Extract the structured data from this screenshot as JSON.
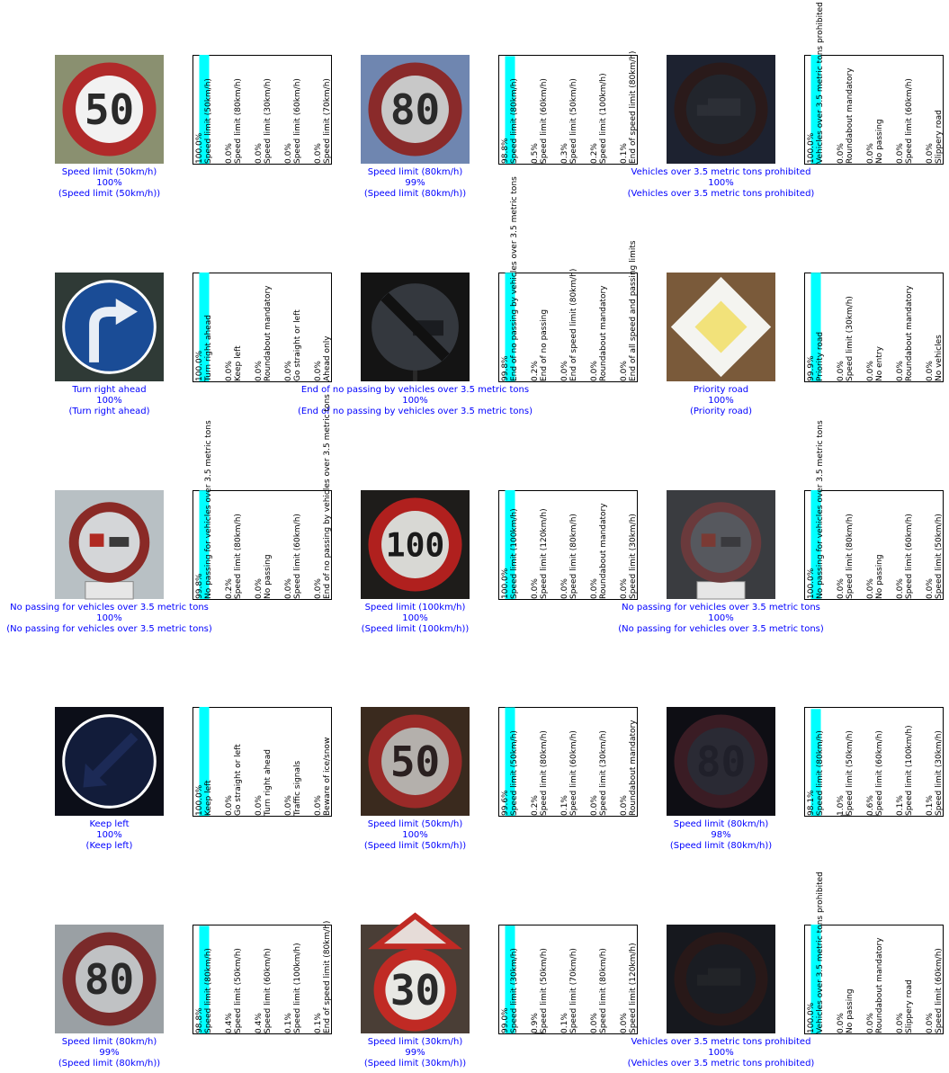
{
  "colors": {
    "prediction_text": "#0000ff",
    "bar_top": "#00ffff",
    "bar_rest": "#777777",
    "axes_frame": "#000000",
    "background": "#ffffff"
  },
  "chart_data": [
    {
      "type": "image-classification-grid",
      "rows": 5,
      "cols": 3,
      "cells": [
        {
          "image": {
            "kind": "round-speed-limit",
            "digits": "50",
            "bg": "#8a9070",
            "ring": "#b02a2a",
            "inner": "#f2f2f2",
            "text": "#2a2a2a"
          },
          "prediction": {
            "label": "Speed limit (50km/h)",
            "percent": "100%",
            "true_label": "(Speed limit (50km/h))"
          },
          "bars": {
            "labels": [
              "Speed limit (50km/h)",
              "Speed limit (80km/h)",
              "Speed limit (30km/h)",
              "Speed limit (60km/h)",
              "Speed limit (70km/h)"
            ],
            "values": [
              100,
              0,
              0,
              0,
              0
            ],
            "texts": [
              "100.0%",
              "0.0%",
              "0.0%",
              "0.0%",
              "0.0%"
            ]
          }
        },
        {
          "image": {
            "kind": "round-speed-limit",
            "digits": "80",
            "bg": "#6f86b0",
            "ring": "#8a2a2a",
            "inner": "#c8c8c8",
            "text": "#2a2a2a"
          },
          "prediction": {
            "label": "Speed limit (80km/h)",
            "percent": "99%",
            "true_label": "(Speed limit (80km/h))"
          },
          "bars": {
            "labels": [
              "Speed limit (80km/h)",
              "Speed limit (60km/h)",
              "Speed limit (50km/h)",
              "Speed limit (100km/h)",
              "End of speed limit (80km/h)"
            ],
            "values": [
              98.8,
              0.5,
              0.3,
              0.2,
              0.1
            ],
            "texts": [
              "98.8%",
              "0.5%",
              "0.3%",
              "0.2%",
              "0.1%"
            ]
          }
        },
        {
          "image": {
            "kind": "round-truck",
            "bg": "#1d2230",
            "ring": "#2a1a1a",
            "inner": "#22252c",
            "truck": "#2c2f36"
          },
          "prediction": {
            "label": "Vehicles over 3.5 metric tons prohibited",
            "percent": "100%",
            "true_label": "(Vehicles over 3.5 metric tons prohibited)"
          },
          "bars": {
            "labels": [
              "Vehicles over 3.5 metric tons prohibited",
              "Roundabout mandatory",
              "No passing",
              "Speed limit (60km/h)",
              "Slippery road"
            ],
            "values": [
              100,
              0,
              0,
              0,
              0
            ],
            "texts": [
              "100.0%",
              "0.0%",
              "0.0%",
              "0.0%",
              "0.0%"
            ]
          }
        },
        {
          "image": {
            "kind": "blue-arrow-right",
            "bg": "#2f3a36",
            "disc": "#1a4c96",
            "arrow": "#e8eef6"
          },
          "prediction": {
            "label": "Turn right ahead",
            "percent": "100%",
            "true_label": "(Turn right ahead)"
          },
          "bars": {
            "labels": [
              "Turn right ahead",
              "Keep left",
              "Roundabout mandatory",
              "Go straight or left",
              "Ahead only"
            ],
            "values": [
              100,
              0,
              0,
              0,
              0
            ],
            "texts": [
              "100.0%",
              "0.0%",
              "0.0%",
              "0.0%",
              "0.0%"
            ]
          }
        },
        {
          "image": {
            "kind": "end-no-passing-truck",
            "bg": "#141414",
            "disc": "#34383e",
            "stripe": "#111111"
          },
          "prediction": {
            "label": "End of no passing by vehicles over 3.5 metric tons",
            "percent": "100%",
            "true_label": "(End of no passing by vehicles over 3.5 metric tons)"
          },
          "bars": {
            "labels": [
              "End of no passing by vehicles over 3.5 metric tons",
              "End of no passing",
              "End of speed limit (80km/h)",
              "Roundabout mandatory",
              "End of all speed and passing limits"
            ],
            "values": [
              99.8,
              0.2,
              0,
              0,
              0
            ],
            "texts": [
              "99.8%",
              "0.2%",
              "0.0%",
              "0.0%",
              "0.0%"
            ]
          }
        },
        {
          "image": {
            "kind": "priority-diamond",
            "bg": "#7a5a3a",
            "outer": "#f4f4f0",
            "inner": "#f2e27a"
          },
          "prediction": {
            "label": "Priority road",
            "percent": "100%",
            "true_label": "(Priority road)"
          },
          "bars": {
            "labels": [
              "Priority road",
              "Speed limit (30km/h)",
              "No entry",
              "Roundabout mandatory",
              "No vehicles"
            ],
            "values": [
              99.9,
              0,
              0,
              0,
              0
            ],
            "texts": [
              "99.9%",
              "0.0%",
              "0.0%",
              "0.0%",
              "0.0%"
            ]
          }
        },
        {
          "image": {
            "kind": "no-passing-truck",
            "bg": "#b8c0c4",
            "ring": "#8a2a26",
            "inner": "#d4d6d8",
            "car": "#b02a22",
            "truck": "#3a3a3a"
          },
          "prediction": {
            "label": "No passing for vehicles over 3.5 metric tons",
            "percent": "100%",
            "true_label": "(No passing for vehicles over 3.5 metric tons)"
          },
          "bars": {
            "labels": [
              "No passing for vehicles over 3.5 metric tons",
              "Speed limit (80km/h)",
              "No passing",
              "Speed limit (60km/h)",
              "End of no passing by vehicles over 3.5 metric tons"
            ],
            "values": [
              99.8,
              0.2,
              0,
              0,
              0
            ],
            "texts": [
              "99.8%",
              "0.2%",
              "0.0%",
              "0.0%",
              "0.0%"
            ]
          }
        },
        {
          "image": {
            "kind": "round-speed-limit",
            "digits": "100",
            "bg": "#1e1c1a",
            "ring": "#b0201e",
            "inner": "#d8d8d4",
            "text": "#1a1a1a"
          },
          "prediction": {
            "label": "Speed limit (100km/h)",
            "percent": "100%",
            "true_label": "(Speed limit (100km/h))"
          },
          "bars": {
            "labels": [
              "Speed limit (100km/h)",
              "Speed limit (120km/h)",
              "Speed limit (80km/h)",
              "Roundabout mandatory",
              "Speed limit (30km/h)"
            ],
            "values": [
              100,
              0,
              0,
              0,
              0
            ],
            "texts": [
              "100.0%",
              "0.0%",
              "0.0%",
              "0.0%",
              "0.0%"
            ]
          }
        },
        {
          "image": {
            "kind": "no-passing-truck",
            "bg": "#3a3c40",
            "ring": "#6a3a3c",
            "inner": "#56585e",
            "car": "#7a3a34",
            "truck": "#3a3a3e"
          },
          "prediction": {
            "label": "No passing for vehicles over 3.5 metric tons",
            "percent": "100%",
            "true_label": "(No passing for vehicles over 3.5 metric tons)"
          },
          "bars": {
            "labels": [
              "No passing for vehicles over 3.5 metric tons",
              "Speed limit (80km/h)",
              "No passing",
              "Speed limit (60km/h)",
              "Speed limit (50km/h)"
            ],
            "values": [
              100,
              0,
              0,
              0,
              0
            ],
            "texts": [
              "100.0%",
              "0.0%",
              "0.0%",
              "0.0%",
              "0.0%"
            ]
          }
        },
        {
          "image": {
            "kind": "blue-arrow-left",
            "bg": "#0c0e18",
            "disc": "#121c3a",
            "arrow": "#1c2a56"
          },
          "prediction": {
            "label": "Keep left",
            "percent": "100%",
            "true_label": "(Keep left)"
          },
          "bars": {
            "labels": [
              "Keep left",
              "Go straight or left",
              "Turn right ahead",
              "Traffic signals",
              "Beware of ice/snow"
            ],
            "values": [
              100,
              0,
              0,
              0,
              0
            ],
            "texts": [
              "100.0%",
              "0.0%",
              "0.0%",
              "0.0%",
              "0.0%"
            ]
          }
        },
        {
          "image": {
            "kind": "round-speed-limit",
            "digits": "50",
            "bg": "#3a2a1e",
            "ring": "#9a2a28",
            "inner": "#b4b0ac",
            "text": "#2a2020"
          },
          "prediction": {
            "label": "Speed limit (50km/h)",
            "percent": "100%",
            "true_label": "(Speed limit (50km/h))"
          },
          "bars": {
            "labels": [
              "Speed limit (50km/h)",
              "Speed limit (80km/h)",
              "Speed limit (60km/h)",
              "Speed limit (30km/h)",
              "Roundabout mandatory"
            ],
            "values": [
              99.6,
              0.2,
              0.1,
              0,
              0
            ],
            "texts": [
              "99.6%",
              "0.2%",
              "0.1%",
              "0.0%",
              "0.0%"
            ]
          }
        },
        {
          "image": {
            "kind": "round-speed-limit",
            "digits": "80",
            "bg": "#0e0e14",
            "ring": "#3a1c24",
            "inner": "#2a2a34",
            "text": "#20202a"
          },
          "prediction": {
            "label": "Speed limit (80km/h)",
            "percent": "98%",
            "true_label": "(Speed limit (80km/h))"
          },
          "bars": {
            "labels": [
              "Speed limit (80km/h)",
              "Speed limit (50km/h)",
              "Speed limit (60km/h)",
              "Speed limit (100km/h)",
              "Speed limit (30km/h)"
            ],
            "values": [
              98.1,
              1,
              0.6,
              0.1,
              0.1
            ],
            "texts": [
              "98.1%",
              "1.0%",
              "0.6%",
              "0.1%",
              "0.1%"
            ]
          }
        },
        {
          "image": {
            "kind": "round-speed-limit",
            "digits": "80",
            "bg": "#9aa0a4",
            "ring": "#7a2a2a",
            "inner": "#c0c2c4",
            "text": "#2a2a2a"
          },
          "prediction": {
            "label": "Speed limit (80km/h)",
            "percent": "99%",
            "true_label": "(Speed limit (80km/h))"
          },
          "bars": {
            "labels": [
              "Speed limit (80km/h)",
              "Speed limit (50km/h)",
              "Speed limit (60km/h)",
              "Speed limit (100km/h)",
              "End of speed limit (80km/h)"
            ],
            "values": [
              98.8,
              0.4,
              0.4,
              0.1,
              0.1
            ],
            "texts": [
              "98.8%",
              "0.4%",
              "0.4%",
              "0.1%",
              "0.1%"
            ]
          }
        },
        {
          "image": {
            "kind": "speed-with-triangle",
            "digits": "30",
            "bg": "#4a3e36",
            "ring": "#c02a24",
            "inner": "#e8e8e4",
            "text": "#2a2a2a"
          },
          "prediction": {
            "label": "Speed limit (30km/h)",
            "percent": "99%",
            "true_label": "(Speed limit (30km/h))"
          },
          "bars": {
            "labels": [
              "Speed limit (30km/h)",
              "Speed limit (50km/h)",
              "Speed limit (70km/h)",
              "Speed limit (80km/h)",
              "Speed limit (120km/h)"
            ],
            "values": [
              99,
              0.9,
              0.1,
              0,
              0
            ],
            "texts": [
              "99.0%",
              "0.9%",
              "0.1%",
              "0.0%",
              "0.0%"
            ]
          }
        },
        {
          "image": {
            "kind": "round-truck",
            "bg": "#16181e",
            "ring": "#281818",
            "inner": "#1a1c22",
            "truck": "#222428"
          },
          "prediction": {
            "label": "Vehicles over 3.5 metric tons prohibited",
            "percent": "100%",
            "true_label": "(Vehicles over 3.5 metric tons prohibited)"
          },
          "bars": {
            "labels": [
              "Vehicles over 3.5 metric tons prohibited",
              "No passing",
              "Roundabout mandatory",
              "Slippery road",
              "Speed limit (60km/h)"
            ],
            "values": [
              100,
              0,
              0,
              0,
              0
            ],
            "texts": [
              "100.0%",
              "0.0%",
              "0.0%",
              "0.0%",
              "0.0%"
            ]
          }
        }
      ]
    }
  ]
}
